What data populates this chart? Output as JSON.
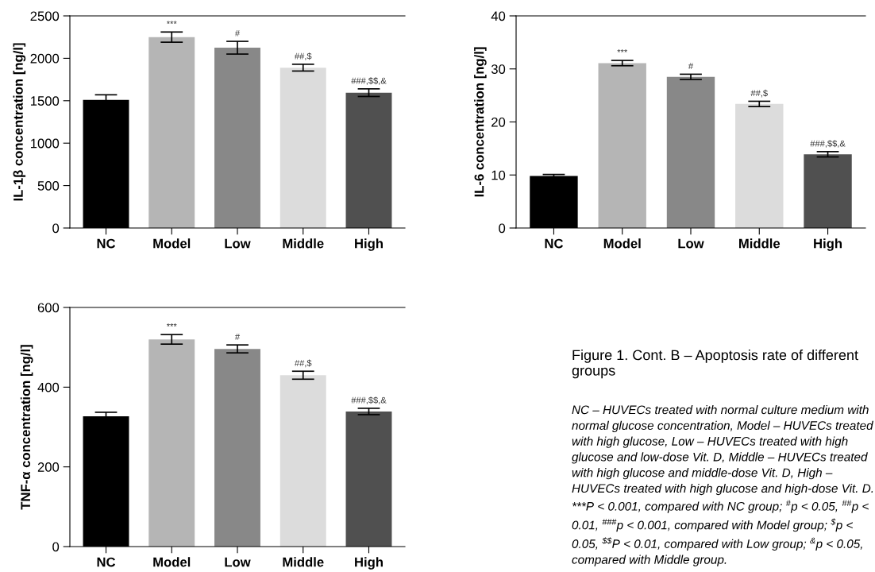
{
  "chart_data": [
    {
      "type": "bar",
      "ylabel": "IL-1β concentration [ng/l]",
      "categories": [
        "NC",
        "Model",
        "Low",
        "Middle",
        "High"
      ],
      "values": [
        1510,
        2250,
        2125,
        1890,
        1595
      ],
      "errors": [
        60,
        60,
        75,
        40,
        45
      ],
      "colors": [
        "#000000",
        "#b5b5b5",
        "#888888",
        "#dcdcdc",
        "#505050"
      ],
      "ylim": [
        0,
        2500
      ],
      "yticks": [
        0,
        500,
        1000,
        1500,
        2000,
        2500
      ],
      "grid": false,
      "annotations": [
        {
          "text": "***",
          "x": "Model",
          "y": 2310
        },
        {
          "text": "#",
          "x": "Low",
          "y": 2200
        },
        {
          "text": "##,$",
          "x": "Middle",
          "y": 1930
        },
        {
          "text": "###,$$,&",
          "x": "High",
          "y": 1640
        }
      ]
    },
    {
      "type": "bar",
      "ylabel": "IL-6 concentration [ng/l]",
      "categories": [
        "NC",
        "Model",
        "Low",
        "Middle",
        "High"
      ],
      "values": [
        9.8,
        31.1,
        28.5,
        23.4,
        13.9
      ],
      "errors": [
        0.3,
        0.5,
        0.5,
        0.5,
        0.5
      ],
      "colors": [
        "#000000",
        "#b5b5b5",
        "#888888",
        "#dcdcdc",
        "#505050"
      ],
      "ylim": [
        0,
        40
      ],
      "yticks": [
        0,
        10,
        20,
        30,
        40
      ],
      "grid": false,
      "annotations": [
        {
          "text": "***",
          "x": "Model",
          "y": 31.6
        },
        {
          "text": "#",
          "x": "Low",
          "y": 29.0
        },
        {
          "text": "##,$",
          "x": "Middle",
          "y": 23.9
        },
        {
          "text": "###,$$,&",
          "x": "High",
          "y": 14.4
        }
      ]
    },
    {
      "type": "bar",
      "ylabel": "TNF-α concentration [ng/l]",
      "categories": [
        "NC",
        "Model",
        "Low",
        "Middle",
        "High"
      ],
      "values": [
        327,
        520,
        496,
        430,
        339
      ],
      "errors": [
        10,
        12,
        10,
        10,
        8
      ],
      "colors": [
        "#000000",
        "#b5b5b5",
        "#888888",
        "#dcdcdc",
        "#505050"
      ],
      "ylim": [
        0,
        600
      ],
      "yticks": [
        0,
        200,
        400,
        600
      ],
      "grid": false,
      "annotations": [
        {
          "text": "***",
          "x": "Model",
          "y": 532
        },
        {
          "text": "#",
          "x": "Low",
          "y": 506
        },
        {
          "text": "##,$",
          "x": "Middle",
          "y": 440
        },
        {
          "text": "###,$$,&",
          "x": "High",
          "y": 347
        }
      ]
    },
    {
      "type": "other",
      "title": "Figure 1. Cont. B – Apoptosis rate of different groups",
      "annotations": [
        "NC – HUVECs treated with normal culture medium with normal glucose concentration, Model – HUVECs treated with high glucose, Low – HUVECs treated with high glucose and low-dose Vit. D, Middle – HUVECs treated with high glucose and middle-dose Vit. D, High – HUVECs treated with high glucose and high-dose Vit. D. ***P < 0.001, compared with NC group; $^{#}$p < 0.05, $^{##}$p < 0.01, $^{###}$p < 0.001, compared with Model group; $^{$}$p < 0.05, $^{$$}$P < 0.01, compared with Low group; $^{&}$p < 0.05, compared with Middle group."
      ]
    }
  ]
}
